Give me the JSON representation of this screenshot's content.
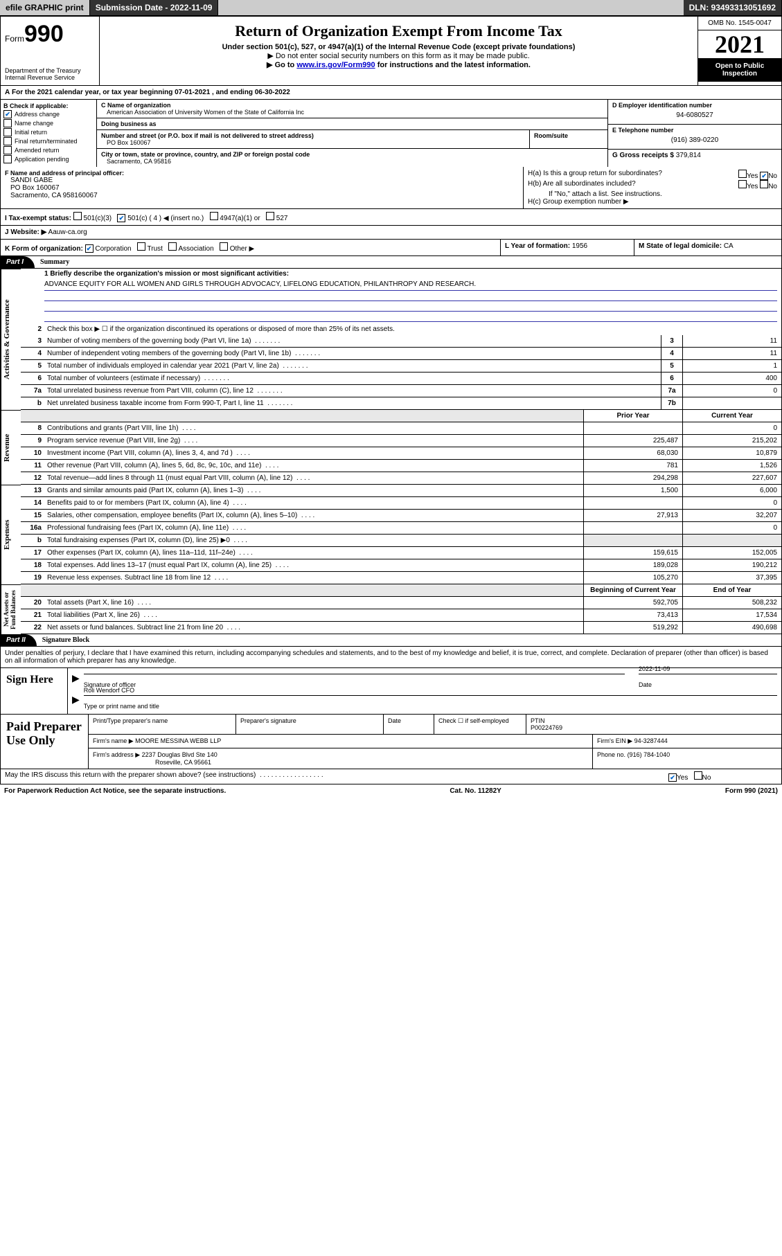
{
  "topbar": {
    "efile": "efile GRAPHIC print",
    "submission_label": "Submission Date - 2022-11-09",
    "dln": "DLN: 93493313051692"
  },
  "header": {
    "form_prefix": "Form",
    "form_number": "990",
    "dept": "Department of the Treasury",
    "irs": "Internal Revenue Service",
    "title": "Return of Organization Exempt From Income Tax",
    "subtitle": "Under section 501(c), 527, or 4947(a)(1) of the Internal Revenue Code (except private foundations)",
    "note1": "▶ Do not enter social security numbers on this form as it may be made public.",
    "note2_pre": "▶ Go to ",
    "note2_link": "www.irs.gov/Form990",
    "note2_post": " for instructions and the latest information.",
    "omb": "OMB No. 1545-0047",
    "year": "2021",
    "open1": "Open to Public",
    "open2": "Inspection"
  },
  "period": {
    "line": "For the 2021 calendar year, or tax year beginning 07-01-2021 , and ending 06-30-2022",
    "prefix": "A"
  },
  "section_b": {
    "label": "B Check if applicable:",
    "items": [
      "Address change",
      "Name change",
      "Initial return",
      "Final return/terminated",
      "Amended return",
      "Application pending"
    ],
    "checked": [
      true,
      false,
      false,
      false,
      false,
      false
    ]
  },
  "section_c": {
    "name_label": "C Name of organization",
    "name": "American Association of University Women of the State of California Inc",
    "dba_label": "Doing business as",
    "dba": "",
    "street_label": "Number and street (or P.O. box if mail is not delivered to street address)",
    "room_label": "Room/suite",
    "street": "PO Box 160067",
    "city_label": "City or town, state or province, country, and ZIP or foreign postal code",
    "city": "Sacramento, CA  95816"
  },
  "section_d": {
    "label": "D Employer identification number",
    "value": "94-6080527"
  },
  "section_e": {
    "label": "E Telephone number",
    "value": "(916) 389-0220"
  },
  "section_g": {
    "label": "G Gross receipts $",
    "value": "379,814"
  },
  "officer": {
    "label": "F Name and address of principal officer:",
    "name": "SANDI GABE",
    "street": "PO Box 160067",
    "city": "Sacramento, CA  958160067"
  },
  "section_h": {
    "a": "H(a) Is this a group return for subordinates?",
    "b": "H(b) Are all subordinates included?",
    "b_note": "If \"No,\" attach a list. See instructions.",
    "c": "H(c) Group exemption number ▶",
    "yes": "Yes",
    "no": "No"
  },
  "tax_exempt": {
    "label": "I  Tax-exempt status:",
    "opt1": "501(c)(3)",
    "opt2": "501(c) ( 4 ) ◀ (insert no.)",
    "opt3": "4947(a)(1) or",
    "opt4": "527"
  },
  "website": {
    "label": "J  Website: ▶",
    "value": "Aauw-ca.org"
  },
  "section_k": {
    "label": "K Form of organization:",
    "opts": [
      "Corporation",
      "Trust",
      "Association",
      "Other ▶"
    ],
    "checked": [
      true,
      false,
      false,
      false
    ]
  },
  "section_l": {
    "label": "L Year of formation:",
    "value": "1956"
  },
  "section_m": {
    "label": "M State of legal domicile:",
    "value": "CA"
  },
  "part1": {
    "tab": "Part I",
    "title": "Summary",
    "q1_label": "1  Briefly describe the organization's mission or most significant activities:",
    "q1_text": "ADVANCE EQUITY FOR ALL WOMEN AND GIRLS THROUGH ADVOCACY, LIFELONG EDUCATION, PHILANTHROPY AND RESEARCH.",
    "q2": "Check this box ▶ ☐ if the organization discontinued its operations or disposed of more than 25% of its net assets.",
    "lines_single": [
      {
        "n": "3",
        "d": "Number of voting members of the governing body (Part VI, line 1a)",
        "b": "3",
        "v": "11"
      },
      {
        "n": "4",
        "d": "Number of independent voting members of the governing body (Part VI, line 1b)",
        "b": "4",
        "v": "11"
      },
      {
        "n": "5",
        "d": "Total number of individuals employed in calendar year 2021 (Part V, line 2a)",
        "b": "5",
        "v": "1"
      },
      {
        "n": "6",
        "d": "Total number of volunteers (estimate if necessary)",
        "b": "6",
        "v": "400"
      },
      {
        "n": "7a",
        "d": "Total unrelated business revenue from Part VIII, column (C), line 12",
        "b": "7a",
        "v": "0"
      },
      {
        "n": "b",
        "d": "Net unrelated business taxable income from Form 990-T, Part I, line 11",
        "b": "7b",
        "v": ""
      }
    ],
    "col_hdr1": "Prior Year",
    "col_hdr2": "Current Year",
    "revenue": [
      {
        "n": "8",
        "d": "Contributions and grants (Part VIII, line 1h)",
        "p": "",
        "c": "0"
      },
      {
        "n": "9",
        "d": "Program service revenue (Part VIII, line 2g)",
        "p": "225,487",
        "c": "215,202"
      },
      {
        "n": "10",
        "d": "Investment income (Part VIII, column (A), lines 3, 4, and 7d )",
        "p": "68,030",
        "c": "10,879"
      },
      {
        "n": "11",
        "d": "Other revenue (Part VIII, column (A), lines 5, 6d, 8c, 9c, 10c, and 11e)",
        "p": "781",
        "c": "1,526"
      },
      {
        "n": "12",
        "d": "Total revenue—add lines 8 through 11 (must equal Part VIII, column (A), line 12)",
        "p": "294,298",
        "c": "227,607"
      }
    ],
    "expenses": [
      {
        "n": "13",
        "d": "Grants and similar amounts paid (Part IX, column (A), lines 1–3)",
        "p": "1,500",
        "c": "6,000"
      },
      {
        "n": "14",
        "d": "Benefits paid to or for members (Part IX, column (A), line 4)",
        "p": "",
        "c": "0"
      },
      {
        "n": "15",
        "d": "Salaries, other compensation, employee benefits (Part IX, column (A), lines 5–10)",
        "p": "27,913",
        "c": "32,207"
      },
      {
        "n": "16a",
        "d": "Professional fundraising fees (Part IX, column (A), line 11e)",
        "p": "",
        "c": "0"
      },
      {
        "n": "b",
        "d": "Total fundraising expenses (Part IX, column (D), line 25) ▶0",
        "p": "__shade__",
        "c": "__shade__"
      },
      {
        "n": "17",
        "d": "Other expenses (Part IX, column (A), lines 11a–11d, 11f–24e)",
        "p": "159,615",
        "c": "152,005"
      },
      {
        "n": "18",
        "d": "Total expenses. Add lines 13–17 (must equal Part IX, column (A), line 25)",
        "p": "189,028",
        "c": "190,212"
      },
      {
        "n": "19",
        "d": "Revenue less expenses. Subtract line 18 from line 12",
        "p": "105,270",
        "c": "37,395"
      }
    ],
    "net_hdr1": "Beginning of Current Year",
    "net_hdr2": "End of Year",
    "net": [
      {
        "n": "20",
        "d": "Total assets (Part X, line 16)",
        "p": "592,705",
        "c": "508,232"
      },
      {
        "n": "21",
        "d": "Total liabilities (Part X, line 26)",
        "p": "73,413",
        "c": "17,534"
      },
      {
        "n": "22",
        "d": "Net assets or fund balances. Subtract line 21 from line 20",
        "p": "519,292",
        "c": "490,698"
      }
    ],
    "vlabels": {
      "ag": "Activities & Governance",
      "rev": "Revenue",
      "exp": "Expenses",
      "net": "Net Assets or\nFund Balances"
    }
  },
  "part2": {
    "tab": "Part II",
    "title": "Signature Block",
    "intro": "Under penalties of perjury, I declare that I have examined this return, including accompanying schedules and statements, and to the best of my knowledge and belief, it is true, correct, and complete. Declaration of preparer (other than officer) is based on all information of which preparer has any knowledge.",
    "sign_here": "Sign Here",
    "sig_officer": "Signature of officer",
    "sig_date": "Date",
    "sig_date_val": "2022-11-09",
    "sig_name": "Roli Wendorf CFO",
    "sig_name_label": "Type or print name and title",
    "paid": "Paid Preparer Use Only",
    "p_name_label": "Print/Type preparer's name",
    "p_sig_label": "Preparer's signature",
    "p_date_label": "Date",
    "p_check": "Check ☐ if self-employed",
    "p_ptin_label": "PTIN",
    "p_ptin": "P00224769",
    "firm_name_label": "Firm's name   ▶",
    "firm_name": "MOORE MESSINA WEBB LLP",
    "firm_ein_label": "Firm's EIN ▶",
    "firm_ein": "94-3287444",
    "firm_addr_label": "Firm's address ▶",
    "firm_addr1": "2237 Douglas Blvd Ste 140",
    "firm_addr2": "Roseville, CA  95661",
    "firm_phone_label": "Phone no.",
    "firm_phone": "(916) 784-1040",
    "may_irs": "May the IRS discuss this return with the preparer shown above? (see instructions)",
    "yes": "Yes",
    "no": "No"
  },
  "footer": {
    "left": "For Paperwork Reduction Act Notice, see the separate instructions.",
    "mid": "Cat. No. 11282Y",
    "right": "Form 990 (2021)"
  }
}
